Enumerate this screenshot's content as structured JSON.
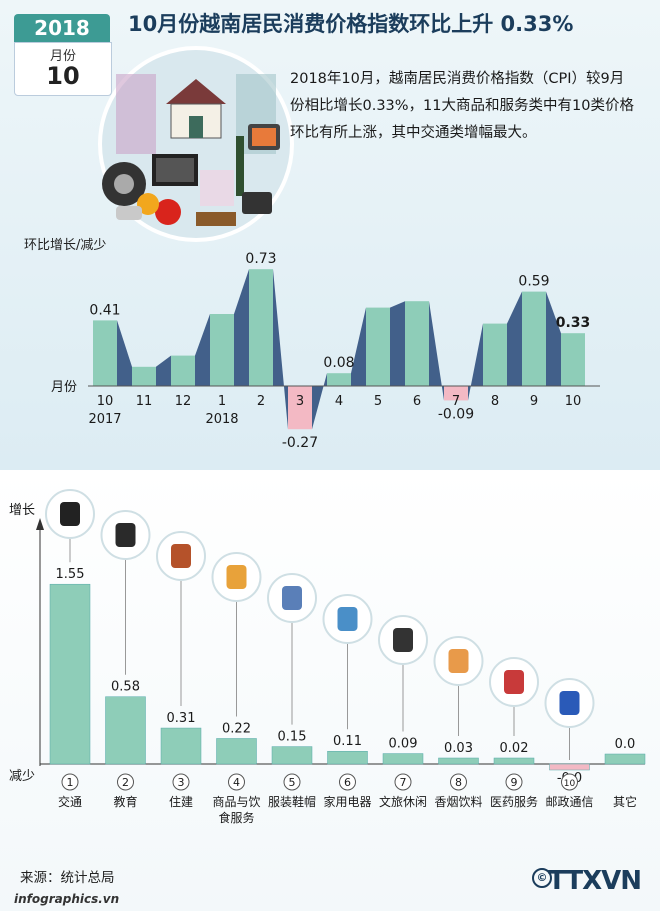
{
  "header": {
    "year": "2018",
    "month_label": "月份",
    "month": "10",
    "title": "10月份越南居民消费价格指数环比上升 0.33%"
  },
  "intro_text": "2018年10月，越南居民消费价格指数（CPI）较9月份相比增长0.33%，11大商品和服务类中有10类价格环比有所上涨，其中交通类增幅最大。",
  "colors": {
    "teal": "#8ecdb8",
    "navy": "#42608a",
    "pink": "#f3b9c4",
    "accent": "#3d9b94"
  },
  "chart_data": [
    {
      "type": "bar",
      "ylabel": "环比增长/减少",
      "xlabel": "月份",
      "categories": [
        "10",
        "11",
        "12",
        "1",
        "2",
        "3",
        "4",
        "5",
        "6",
        "7",
        "8",
        "9",
        "10"
      ],
      "year_labels": [
        {
          "index": 0,
          "label": "2017"
        },
        {
          "index": 3,
          "label": "2018"
        }
      ],
      "values": [
        0.41,
        0.12,
        0.19,
        0.45,
        0.73,
        -0.27,
        0.08,
        0.49,
        0.53,
        -0.09,
        0.39,
        0.59,
        0.33
      ],
      "data_labels": [
        "0.41",
        "",
        "",
        "",
        "0.73",
        "-0.27",
        "0.08",
        "",
        "",
        "-0.09",
        "",
        "0.59",
        "0.33"
      ]
    },
    {
      "type": "bar",
      "ylabel_top": "增长",
      "ylabel_bottom": "减少",
      "categories": [
        {
          "num": "1",
          "label": "交通",
          "icon": "traffic-light-icon"
        },
        {
          "num": "2",
          "label": "教育",
          "icon": "graduation-cap-icon"
        },
        {
          "num": "3",
          "label": "住建",
          "icon": "house-icon"
        },
        {
          "num": "4",
          "label": "商品与饮",
          "label2": "食服务",
          "icon": "food-plate-icon"
        },
        {
          "num": "5",
          "label": "服装鞋帽",
          "icon": "shirt-shoes-icon"
        },
        {
          "num": "6",
          "label": "家用电器",
          "icon": "washing-machine-icon"
        },
        {
          "num": "7",
          "label": "文旅休闲",
          "icon": "clapperboard-icon"
        },
        {
          "num": "8",
          "label": "香烟饮料",
          "icon": "drinks-cigarettes-icon"
        },
        {
          "num": "9",
          "label": "医药服务",
          "icon": "medicine-pill-icon"
        },
        {
          "num": "10",
          "label": "邮政通信",
          "icon": "antenna-tower-icon"
        },
        {
          "num": "",
          "label": "其它",
          "icon": ""
        }
      ],
      "values": [
        1.55,
        0.58,
        0.31,
        0.22,
        0.15,
        0.11,
        0.09,
        0.03,
        0.02,
        -0.0,
        0.0
      ],
      "data_labels": [
        "1.55",
        "0.58",
        "0.31",
        "0.22",
        "0.15",
        "0.11",
        "0.09",
        "0.03",
        "0.02",
        "-0.0",
        "0.0"
      ]
    }
  ],
  "source": "来源：统计总局",
  "footer": "infographics.vn",
  "logo": {
    "text": "TTXVN",
    "copyright": "©"
  }
}
